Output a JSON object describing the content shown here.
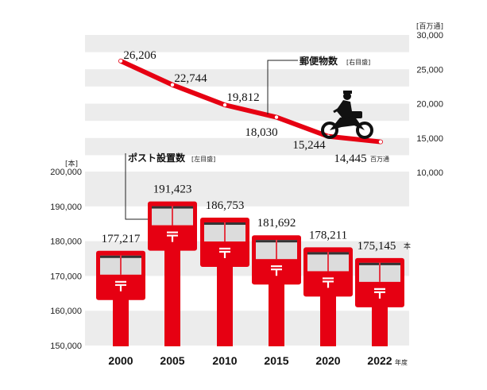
{
  "chart_data": {
    "type": "bar+line",
    "categories": [
      "2000",
      "2005",
      "2010",
      "2015",
      "2020",
      "2022"
    ],
    "x_suffix": "年度",
    "bars": {
      "name": "ポスト設置数",
      "axis_note": "[左目盛]",
      "unit": "本",
      "axis_unit_label": "[本]",
      "values": [
        177217,
        191423,
        186753,
        181692,
        178211,
        175145
      ],
      "labels": [
        "177,217",
        "191,423",
        "186,753",
        "181,692",
        "178,211",
        "175,145"
      ],
      "ylim": [
        150000,
        200000
      ],
      "ticks": [
        "150,000",
        "160,000",
        "170,000",
        "180,000",
        "190,000",
        "200,000"
      ]
    },
    "line": {
      "name": "郵便物数",
      "axis_note": "[右目盛]",
      "unit": "百万通",
      "axis_unit_label": "[百万通]",
      "values": [
        26206,
        22744,
        19812,
        18030,
        15244,
        14445
      ],
      "labels": [
        "26,206",
        "22,744",
        "19,812",
        "18,030",
        "15,244",
        "14,445"
      ],
      "ylim": [
        10000,
        30000
      ],
      "ticks": [
        "10,000",
        "15,000",
        "20,000",
        "25,000",
        "30,000"
      ]
    },
    "colors": {
      "red": "#e60012",
      "band": "#ececec",
      "box_grey": "#dcdcdc"
    }
  }
}
